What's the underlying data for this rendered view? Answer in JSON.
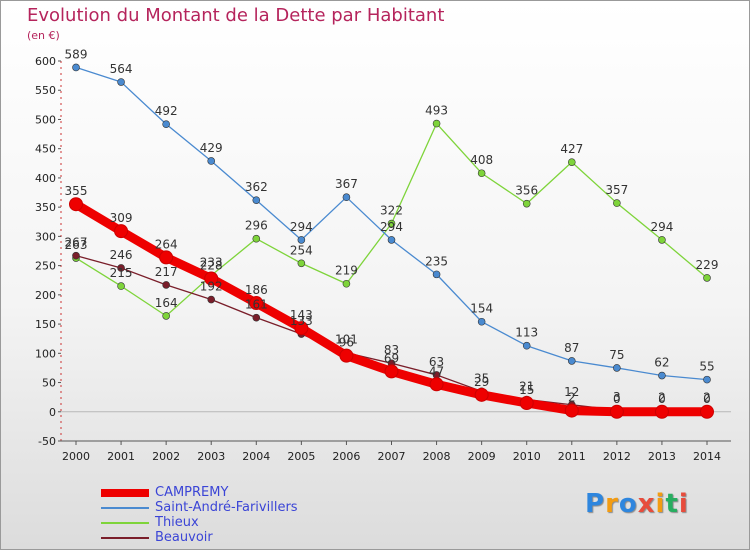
{
  "title": "Evolution du Montant de la Dette par Habitant",
  "unit_label": "(en €)",
  "logo_text": "Proxiti",
  "logo_colors": [
    "#2e86de",
    "#f39c12",
    "#2e86de",
    "#e74c3c",
    "#f39c12",
    "#27ae60",
    "#e74c3c"
  ],
  "chart_data": {
    "type": "line",
    "title": "Evolution du Montant de la Dette par Habitant",
    "ylabel": "(en €)",
    "xlabel": "",
    "x": [
      2000,
      2001,
      2002,
      2003,
      2004,
      2005,
      2006,
      2007,
      2008,
      2009,
      2010,
      2011,
      2012,
      2013,
      2014
    ],
    "ylim": [
      -50,
      600
    ],
    "yticks": [
      -50,
      0,
      50,
      100,
      150,
      200,
      250,
      300,
      350,
      400,
      450,
      500,
      550,
      600
    ],
    "grid": false,
    "legend_position": "bottom-left",
    "series": [
      {
        "name": "CAMPREMY",
        "color": "#ee0000",
        "values": [
          355,
          309,
          264,
          228,
          186,
          143,
          96,
          69,
          47,
          29,
          15,
          2,
          0,
          0,
          0
        ],
        "labels": [
          "355",
          "309",
          "264",
          "228",
          "186",
          "143",
          "96",
          "69",
          "47",
          "29",
          "15",
          "2",
          "0",
          "0",
          "0"
        ]
      },
      {
        "name": "Saint-André-Farivillers",
        "color": "#4a8ad0",
        "values": [
          589,
          564,
          492,
          429,
          362,
          294,
          367,
          294,
          235,
          154,
          113,
          87,
          75,
          62,
          55
        ],
        "labels": [
          "589",
          "564",
          "492",
          "429",
          "362",
          "294",
          "367",
          "294",
          "235",
          "154",
          "113",
          "87",
          "75",
          "62",
          "55"
        ]
      },
      {
        "name": "Thieux",
        "color": "#7ed43a",
        "values": [
          263,
          215,
          164,
          233,
          296,
          254,
          219,
          322,
          493,
          408,
          356,
          427,
          357,
          294,
          229
        ],
        "labels": [
          "263",
          "215",
          "164",
          "233",
          "296",
          "254",
          "219",
          "322",
          "493",
          "408",
          "356",
          "427",
          "357",
          "294",
          "229"
        ]
      },
      {
        "name": "Beauvoir",
        "color": "#7a1e2a",
        "values": [
          267,
          246,
          217,
          192,
          161,
          133,
          101,
          83,
          63,
          35,
          21,
          12,
          3,
          2,
          2
        ],
        "labels": [
          "267",
          "246",
          "217",
          "192",
          "161",
          "133",
          "101",
          "83",
          "63",
          "35",
          "21",
          "12",
          "3",
          "2",
          "2"
        ]
      }
    ]
  }
}
